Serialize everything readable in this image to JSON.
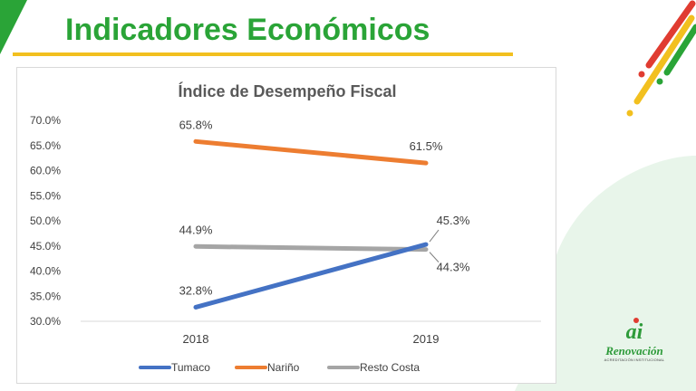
{
  "slide": {
    "title": "Indicadores Económicos",
    "colors": {
      "title_green": "#2aa437",
      "rule_yellow": "#f2c01f",
      "stripe_red": "#e03c31",
      "stripe_yellow": "#f2c01f",
      "stripe_green": "#2aa437"
    }
  },
  "logo": {
    "mark": "ai",
    "name": "Renovación",
    "subtitle": "ACREDITACIÓN INSTITUCIONAL"
  },
  "chart_data": {
    "type": "line",
    "title": "Índice de Desempeño Fiscal",
    "xlabel": "",
    "ylabel": "",
    "categories": [
      "2018",
      "2019"
    ],
    "ylim": [
      30,
      70
    ],
    "yticks": [
      "30.0%",
      "35.0%",
      "40.0%",
      "45.0%",
      "50.0%",
      "55.0%",
      "60.0%",
      "65.0%",
      "70.0%"
    ],
    "grid": false,
    "legend_position": "bottom",
    "series": [
      {
        "name": "Tumaco",
        "color": "#4472c4",
        "values": [
          32.8,
          45.3
        ],
        "labels": [
          "32.8%",
          "45.3%"
        ]
      },
      {
        "name": "Nariño",
        "color": "#ed7d31",
        "values": [
          65.8,
          61.5
        ],
        "labels": [
          "65.8%",
          "61.5%"
        ]
      },
      {
        "name": "Resto Costa",
        "color": "#a5a5a5",
        "values": [
          44.9,
          44.3
        ],
        "labels": [
          "44.9%",
          "44.3%"
        ]
      }
    ]
  }
}
